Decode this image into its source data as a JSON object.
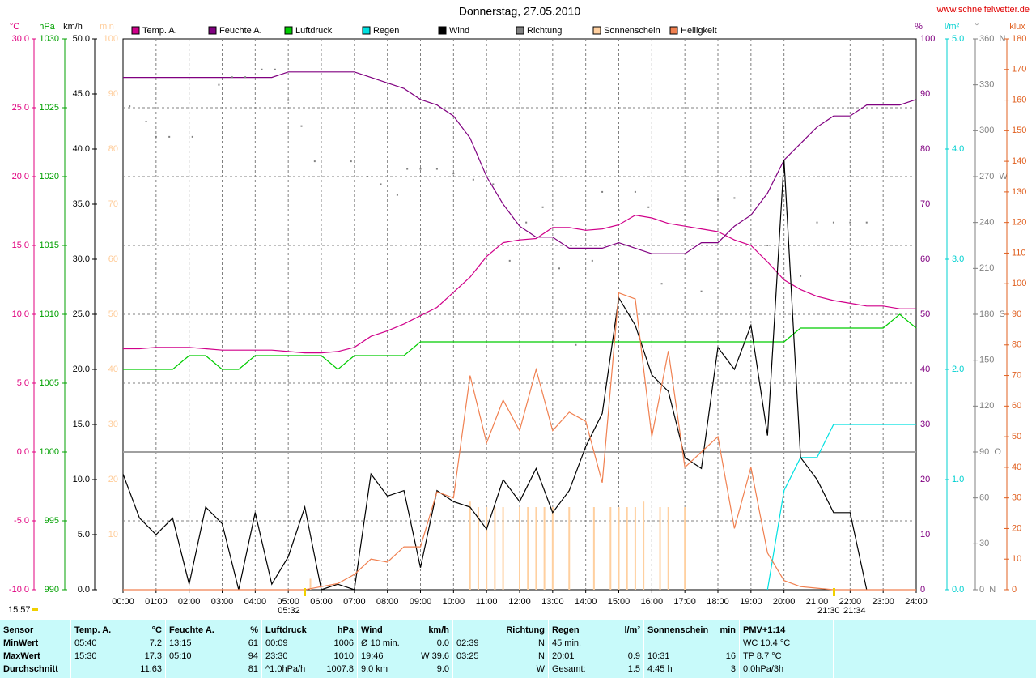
{
  "chart_data": {
    "type": "line",
    "title": "Donnerstag, 27.05.2010",
    "source": "www.schneifelwetter.de",
    "grid": true,
    "xlim": [
      0,
      24
    ],
    "xticks": [
      {
        "value": 0,
        "label": "00:00"
      },
      {
        "value": 1,
        "label": "01:00"
      },
      {
        "value": 2,
        "label": "02:00"
      },
      {
        "value": 3,
        "label": "03:00"
      },
      {
        "value": 4,
        "label": "04:00"
      },
      {
        "value": 5,
        "label": "05:00"
      },
      {
        "value": 6,
        "label": "06:00"
      },
      {
        "value": 7,
        "label": "07:00"
      },
      {
        "value": 8,
        "label": "08:00"
      },
      {
        "value": 9,
        "label": "09:00"
      },
      {
        "value": 10,
        "label": "10:00"
      },
      {
        "value": 11,
        "label": "11:00"
      },
      {
        "value": 12,
        "label": "12:00"
      },
      {
        "value": 13,
        "label": "13:00"
      },
      {
        "value": 14,
        "label": "14:00"
      },
      {
        "value": 15,
        "label": "15:00"
      },
      {
        "value": 16,
        "label": "16:00"
      },
      {
        "value": 17,
        "label": "17:00"
      },
      {
        "value": 18,
        "label": "18:00"
      },
      {
        "value": 19,
        "label": "19:00"
      },
      {
        "value": 20,
        "label": "20:00"
      },
      {
        "value": 21,
        "label": "21:00"
      },
      {
        "value": 22,
        "label": "22:00"
      },
      {
        "value": 23,
        "label": "23:00"
      },
      {
        "value": 24,
        "label": "24:00"
      }
    ],
    "x": [
      0,
      0.5,
      1,
      1.5,
      2,
      2.5,
      3,
      3.5,
      4,
      4.5,
      5,
      5.5,
      6,
      6.5,
      7,
      7.5,
      8,
      8.5,
      9,
      9.5,
      10,
      10.5,
      11,
      11.5,
      12,
      12.5,
      13,
      13.5,
      14,
      14.5,
      15,
      15.5,
      16,
      16.5,
      17,
      17.5,
      18,
      18.5,
      19,
      19.5,
      20,
      20.5,
      21,
      21.5,
      22,
      22.5,
      23,
      23.5,
      24
    ],
    "y_axes": {
      "temperature": {
        "unit": "°C",
        "color": "#e0007f",
        "lim": [
          -10,
          30
        ],
        "ticks": [
          {
            "value": -10,
            "label": "-10.0"
          },
          {
            "value": -5,
            "label": "-5.0"
          },
          {
            "value": 0,
            "label": "0.0"
          },
          {
            "value": 5,
            "label": "5.0"
          },
          {
            "value": 10,
            "label": "10.0"
          },
          {
            "value": 15,
            "label": "15.0"
          },
          {
            "value": 20,
            "label": "20.0"
          },
          {
            "value": 25,
            "label": "25.0"
          },
          {
            "value": 30,
            "label": "30.0"
          }
        ]
      },
      "pressure": {
        "unit": "hPa",
        "color": "#00a000",
        "lim": [
          990,
          1030
        ],
        "ticks": [
          990,
          995,
          1000,
          1005,
          1010,
          1015,
          1020,
          1025,
          1030
        ]
      },
      "wind": {
        "unit": "km/h",
        "color": "#000000",
        "lim": [
          0,
          50
        ],
        "ticks": [
          {
            "value": 0,
            "label": "0.0"
          },
          {
            "value": 5,
            "label": "5.0"
          },
          {
            "value": 10,
            "label": "10.0"
          },
          {
            "value": 15,
            "label": "15.0"
          },
          {
            "value": 20,
            "label": "20.0"
          },
          {
            "value": 25,
            "label": "25.0"
          },
          {
            "value": 30,
            "label": "30.0"
          },
          {
            "value": 35,
            "label": "35.0"
          },
          {
            "value": 40,
            "label": "40.0"
          },
          {
            "value": 45,
            "label": "45.0"
          },
          {
            "value": 50,
            "label": "50.0"
          }
        ]
      },
      "sunshine": {
        "unit": "min",
        "color": "#ffcc99",
        "lim": [
          0,
          100
        ],
        "ticks": [
          10,
          20,
          30,
          40,
          50,
          60,
          70,
          80,
          90,
          100
        ]
      },
      "humidity": {
        "unit": "%",
        "color": "#800080",
        "lim": [
          0,
          100
        ],
        "ticks": [
          0,
          10,
          20,
          30,
          40,
          50,
          60,
          70,
          80,
          90,
          100
        ]
      },
      "rain": {
        "unit": "l/m²",
        "color": "#00d0d0",
        "lim": [
          0,
          5
        ],
        "ticks": [
          {
            "value": 0,
            "label": "0.0"
          },
          {
            "value": 1,
            "label": "1.0"
          },
          {
            "value": 2,
            "label": "2.0"
          },
          {
            "value": 3,
            "label": "3.0"
          },
          {
            "value": 4,
            "label": "4.0"
          },
          {
            "value": 5,
            "label": "5.0"
          }
        ]
      },
      "direction": {
        "unit": "°",
        "color": "#808080",
        "lim": [
          0,
          360
        ],
        "ticks": [
          {
            "value": 0,
            "label": "0  N"
          },
          30,
          60,
          {
            "value": 90,
            "label": "90  O"
          },
          120,
          150,
          {
            "value": 180,
            "label": "180  S"
          },
          210,
          240,
          {
            "value": 270,
            "label": "270  W"
          },
          300,
          330,
          {
            "value": 360,
            "label": "360  N"
          }
        ]
      },
      "brightness": {
        "unit": "klux",
        "color": "#e06020",
        "lim": [
          0,
          180
        ],
        "ticks": [
          0,
          10,
          20,
          30,
          40,
          50,
          60,
          70,
          80,
          90,
          100,
          110,
          120,
          130,
          140,
          150,
          160,
          170,
          180
        ]
      }
    },
    "series": [
      {
        "name": "Temp. A.",
        "color": "#d0008a",
        "axis": "temperature",
        "mark": "line",
        "values": [
          7.5,
          7.5,
          7.6,
          7.6,
          7.6,
          7.5,
          7.4,
          7.4,
          7.4,
          7.4,
          7.3,
          7.2,
          7.2,
          7.3,
          7.6,
          8.4,
          8.8,
          9.3,
          9.9,
          10.5,
          11.6,
          12.7,
          14.2,
          15.2,
          15.4,
          15.5,
          16.3,
          16.3,
          16.1,
          16.2,
          16.5,
          17.2,
          17.0,
          16.6,
          16.4,
          16.2,
          16.0,
          15.4,
          15.0,
          13.8,
          12.5,
          11.8,
          11.3,
          11.0,
          10.8,
          10.6,
          10.6,
          10.4,
          10.4
        ]
      },
      {
        "name": "Feuchte A.",
        "color": "#800080",
        "axis": "humidity",
        "mark": "line",
        "values": [
          93,
          93,
          93,
          93,
          93,
          93,
          93,
          93,
          93,
          93,
          94,
          94,
          94,
          94,
          94,
          93,
          92,
          91,
          89,
          88,
          86,
          82,
          75,
          70,
          66,
          64,
          64,
          62,
          62,
          62,
          63,
          62,
          61,
          61,
          61,
          63,
          63,
          66,
          68,
          72,
          78,
          81,
          84,
          86,
          86,
          88,
          88,
          88,
          89
        ]
      },
      {
        "name": "Luftdruck",
        "color": "#00cc00",
        "axis": "pressure",
        "mark": "line",
        "values": [
          1006,
          1006,
          1006,
          1006,
          1007,
          1007,
          1006,
          1006,
          1007,
          1007,
          1007,
          1007,
          1007,
          1006,
          1007,
          1007,
          1007,
          1007,
          1008,
          1008,
          1008,
          1008,
          1008,
          1008,
          1008,
          1008,
          1008,
          1008,
          1008,
          1008,
          1008,
          1008,
          1008,
          1008,
          1008,
          1008,
          1008,
          1008,
          1008,
          1008,
          1008,
          1009,
          1009,
          1009,
          1009,
          1009,
          1009,
          1010,
          1009
        ]
      },
      {
        "name": "Regen",
        "color": "#00e0e0",
        "axis": "rain",
        "mark": "line",
        "values": [
          null,
          null,
          null,
          null,
          null,
          null,
          null,
          null,
          null,
          null,
          null,
          null,
          null,
          null,
          null,
          null,
          null,
          null,
          null,
          null,
          null,
          null,
          null,
          null,
          null,
          null,
          null,
          null,
          null,
          null,
          null,
          null,
          null,
          null,
          null,
          null,
          null,
          null,
          null,
          0,
          0.9,
          1.2,
          1.2,
          1.5,
          1.5,
          1.5,
          1.5,
          1.5,
          1.5
        ]
      },
      {
        "name": "Wind",
        "color": "#000000",
        "axis": "wind",
        "mark": "line",
        "values": [
          10.5,
          6.5,
          5,
          6.5,
          0.5,
          7.5,
          6,
          0,
          7,
          0.5,
          3,
          7.5,
          0,
          0.5,
          0,
          10.5,
          8.5,
          9,
          2,
          9,
          8,
          7.5,
          5.5,
          10,
          8,
          11,
          7,
          9,
          13,
          16,
          26.5,
          24,
          19.5,
          18,
          12,
          11,
          22,
          20,
          24,
          14,
          39,
          12,
          10,
          7,
          7,
          0,
          null,
          null,
          null
        ]
      },
      {
        "name": "Richtung",
        "color": "#808080",
        "axis": "direction",
        "mark": "dot",
        "x": [
          0.2,
          0.7,
          1.0,
          1.4,
          2.1,
          2.9,
          3.3,
          3.7,
          4.2,
          4.6,
          5.0,
          5.4,
          5.8,
          6.9,
          7.4,
          7.8,
          8.3,
          8.6,
          9.0,
          9.5,
          10.0,
          10.6,
          11.2,
          11.7,
          12.2,
          12.7,
          13.2,
          13.7,
          14.2,
          14.5,
          15.0,
          15.5,
          15.9,
          16.3,
          17.0,
          17.5,
          18.0,
          18.5,
          19.0,
          19.5,
          20.0,
          20.5,
          21.0,
          21.5,
          22.0,
          22.5
        ],
        "values": [
          316,
          306,
          296,
          296,
          296,
          330,
          335,
          335,
          340,
          340,
          320,
          303,
          280,
          280,
          270,
          265,
          258,
          275,
          275,
          275,
          272,
          268,
          265,
          215,
          240,
          250,
          210,
          160,
          215,
          260,
          248,
          260,
          250,
          200,
          245,
          195,
          255,
          256,
          200,
          225,
          270,
          205,
          240,
          240,
          240,
          240
        ]
      },
      {
        "name": "Sonnenschein",
        "color": "#ffd0a0",
        "axis": "sunshine",
        "mark": "bar",
        "x": [
          5.67,
          10.5,
          10.75,
          11.0,
          11.25,
          11.5,
          12.0,
          12.25,
          12.5,
          12.75,
          13.0,
          13.5,
          14.25,
          14.75,
          15.0,
          15.25,
          15.5,
          15.75,
          16.25,
          16.5,
          17.0
        ],
        "values": [
          2,
          16,
          15,
          15,
          15,
          15,
          15,
          15,
          15,
          15,
          15,
          15,
          15,
          15,
          15,
          15,
          15,
          16,
          15,
          15,
          15
        ]
      },
      {
        "name": "Helligkeit",
        "color": "#f08050",
        "axis": "brightness",
        "mark": "line",
        "values": [
          0,
          0,
          0,
          0,
          0,
          0,
          0,
          0,
          0,
          0,
          0,
          0,
          1,
          2,
          5,
          10,
          9,
          14,
          14,
          32,
          30,
          70,
          48,
          62,
          52,
          72,
          52,
          58,
          55,
          35,
          97,
          95,
          50,
          78,
          40,
          45,
          50,
          20,
          40,
          12,
          3,
          1,
          0.5,
          0,
          0,
          0,
          0,
          0,
          0
        ]
      }
    ],
    "annotations": [
      "15:57",
      "05:32",
      "21:30",
      "21:34"
    ]
  },
  "table": {
    "header": [
      [
        "Sensor"
      ],
      [
        "Temp. A.",
        "°C"
      ],
      [
        "Feuchte A.",
        "%"
      ],
      [
        "Luftdruck",
        "hPa"
      ],
      [
        "Wind",
        "km/h"
      ],
      [
        "Richtung"
      ],
      [
        "Regen",
        "l/m²"
      ],
      [
        "Sonnenschein",
        "min"
      ],
      [
        "PMV+1:14"
      ]
    ],
    "rows": [
      [
        [
          "MinWert"
        ],
        [
          "05:40",
          "7.2"
        ],
        [
          "13:15",
          "61"
        ],
        [
          "00:09",
          "1006"
        ],
        [
          "Ø 10 min.",
          "0.0"
        ],
        [
          "02:39",
          "N"
        ],
        [
          "45 min."
        ],
        [],
        [
          "WC 10.4 °C"
        ]
      ],
      [
        [
          "MaxWert"
        ],
        [
          "15:30",
          "17.3"
        ],
        [
          "05:10",
          "94"
        ],
        [
          "23:30",
          "1010"
        ],
        [
          "19:46",
          "W 39.6"
        ],
        [
          "03:25",
          "N"
        ],
        [
          "20:01",
          "0.9"
        ],
        [
          "10:31",
          "16"
        ],
        [
          "TP 8.7 °C"
        ]
      ],
      [
        [
          "Durchschnitt"
        ],
        [
          "11.63"
        ],
        [
          "81"
        ],
        [
          "^1.0hPa/h",
          "1007.8"
        ],
        [
          "9,0 km",
          "9.0"
        ],
        [
          "W"
        ],
        [
          "Gesamt:",
          "1.5"
        ],
        [
          "4:45 h",
          "3"
        ],
        [
          "0.0hPa/3h"
        ]
      ]
    ]
  }
}
